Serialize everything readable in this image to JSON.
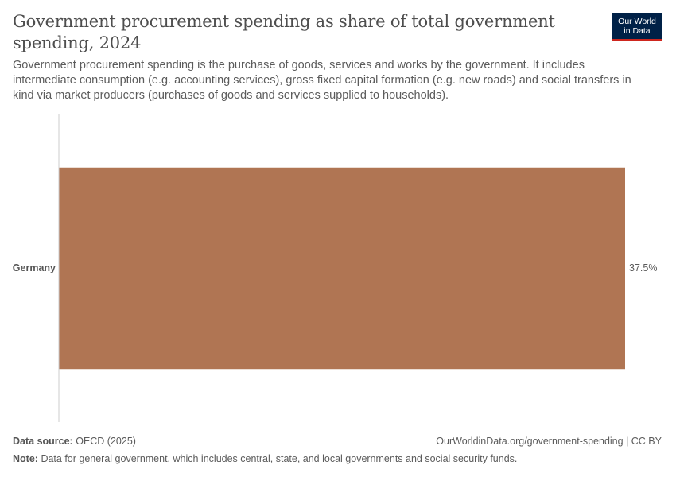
{
  "header": {
    "title": "Government procurement spending as share of total government spending, 2024",
    "subtitle": "Government procurement spending is the purchase of goods, services and works by the government. It includes intermediate consumption (e.g. accounting services), gross fixed capital formation (e.g. new roads) and social transfers in kind via market producers (purchases of goods and services supplied to households).",
    "logo_line1": "Our World",
    "logo_line2": "in Data"
  },
  "footer": {
    "source_label": "Data source:",
    "source_text": "OECD (2025)",
    "url_text": "OurWorldinData.org/government-spending | CC BY",
    "note_label": "Note:",
    "note_text": "Data for general government, which includes central, state, and local governments and social security funds."
  },
  "chart_data": {
    "type": "bar",
    "orientation": "horizontal",
    "categories": [
      "Germany"
    ],
    "values": [
      37.5
    ],
    "value_labels": [
      "37.5%"
    ],
    "xlim": [
      0,
      37.5
    ],
    "bar_color": "#b07553",
    "axis_color": "#cccccc"
  }
}
